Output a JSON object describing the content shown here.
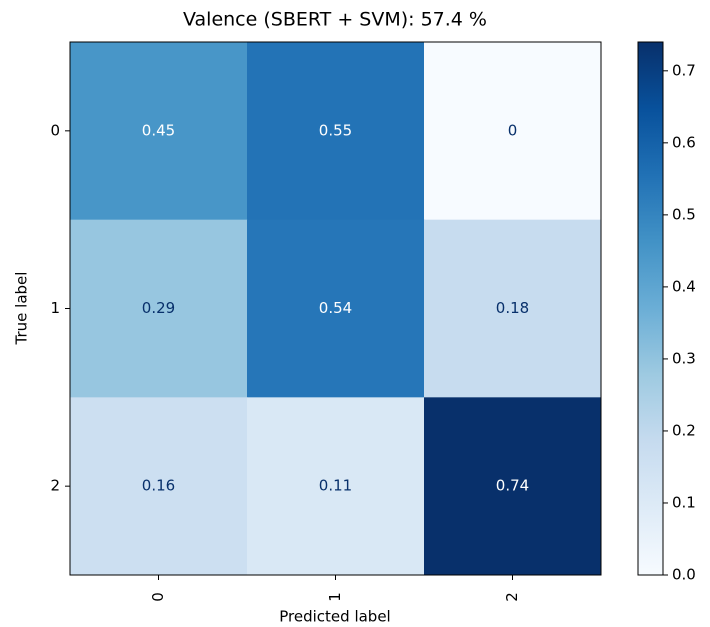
{
  "chart_data": {
    "type": "heatmap",
    "title": "Valence (SBERT + SVM): 57.4 %",
    "x_label": "Predicted label",
    "y_label": "True label",
    "x_categories": [
      "0",
      "1",
      "2"
    ],
    "y_categories": [
      "0",
      "1",
      "2"
    ],
    "values": [
      [
        0.45,
        0.55,
        0
      ],
      [
        0.29,
        0.54,
        0.18
      ],
      [
        0.16,
        0.11,
        0.74
      ]
    ],
    "colormap": "Blues",
    "zlim": [
      0,
      0.74
    ],
    "zticks": [
      {
        "value": 0,
        "label": "0.0"
      },
      0.1,
      0.2,
      0.3,
      0.4,
      0.5,
      0.6,
      0.7
    ]
  }
}
